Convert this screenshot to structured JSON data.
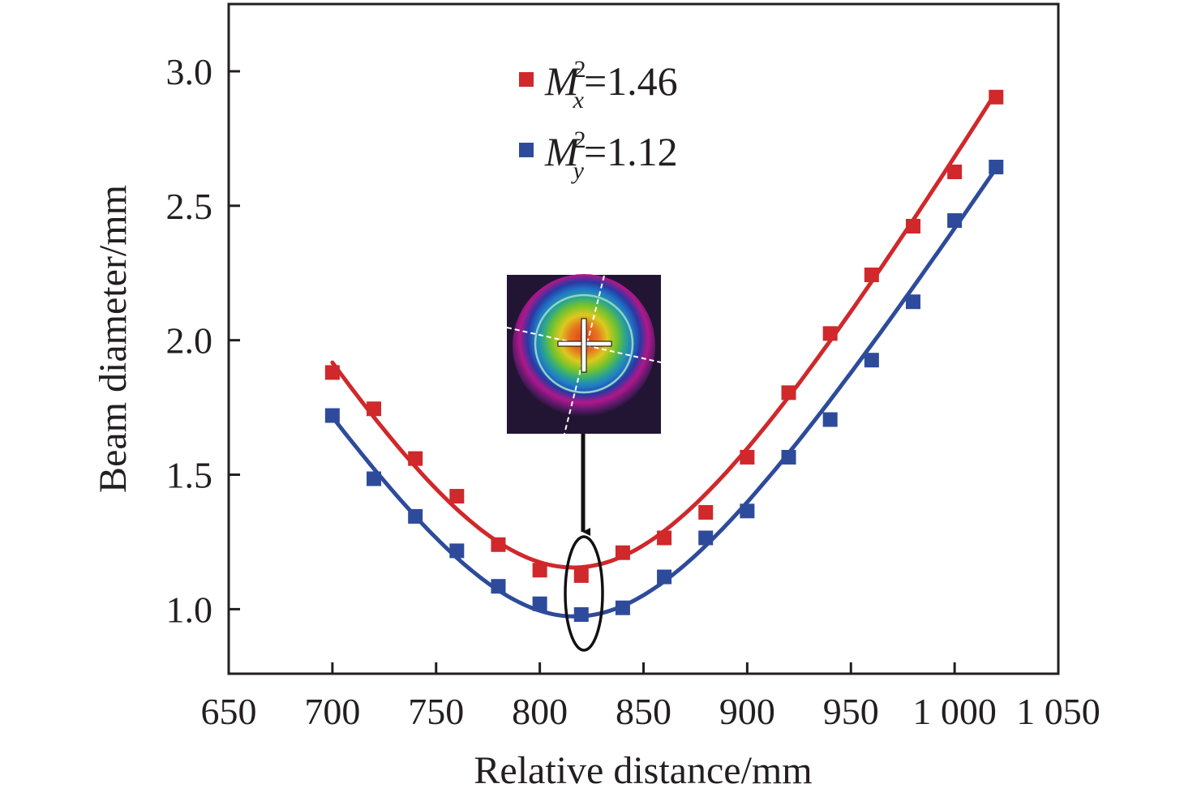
{
  "chart_data": {
    "type": "scatter",
    "title": "",
    "xlabel": "Relative distance/mm",
    "ylabel": "Beam diameter/mm",
    "xlim": [
      650,
      1050
    ],
    "ylim": [
      0.76,
      3.25
    ],
    "xticks": [
      650,
      700,
      750,
      800,
      850,
      900,
      950,
      1000,
      1050
    ],
    "xtick_labels": [
      "650",
      "700",
      "750",
      "800",
      "850",
      "900",
      "950",
      "1 000",
      "1 050"
    ],
    "yticks": [
      1.0,
      1.5,
      2.0,
      2.5,
      3.0
    ],
    "ytick_labels": [
      "1.0",
      "1.5",
      "2.0",
      "2.5",
      "3.0"
    ],
    "grid": false,
    "legend_placement": "top-center",
    "x": [
      700,
      720,
      740,
      760,
      780,
      800,
      820,
      840,
      860,
      880,
      900,
      920,
      940,
      960,
      980,
      1000,
      1020
    ],
    "series": [
      {
        "name": "M_x^2=1.46",
        "legend": {
          "symbol": "M",
          "sup": "2",
          "sub": "x",
          "value": "=1.46"
        },
        "color": "#d0282b",
        "marker": "square",
        "values": [
          1.88,
          1.745,
          1.56,
          1.42,
          1.24,
          1.145,
          1.125,
          1.21,
          1.265,
          1.36,
          1.565,
          1.805,
          2.025,
          2.243,
          2.424,
          2.626,
          2.904
        ],
        "fit": {
          "model": "hyperbolic caustic",
          "d0": 1.155,
          "z0": 816.2,
          "theta": 0.01317
        }
      },
      {
        "name": "M_y^2=1.12",
        "legend": {
          "symbol": "M",
          "sup": "2",
          "sub": "y",
          "value": "=1.12"
        },
        "color": "#2e4b9b",
        "marker": "square",
        "values": [
          1.72,
          1.485,
          1.345,
          1.217,
          1.085,
          1.02,
          0.98,
          1.005,
          1.12,
          1.265,
          1.365,
          1.565,
          1.705,
          1.926,
          2.143,
          2.445,
          2.644
        ],
        "fit": {
          "model": "hyperbolic caustic",
          "d0": 0.973,
          "z0": 816.9,
          "theta": 0.01208
        }
      }
    ],
    "annotations": [
      {
        "type": "inset-image",
        "description": "beam profile at waist",
        "points_to_x": 820
      },
      {
        "type": "ellipse",
        "highlights_x": 820
      },
      {
        "type": "arrow",
        "from": "inset",
        "to": "ellipse"
      }
    ]
  }
}
